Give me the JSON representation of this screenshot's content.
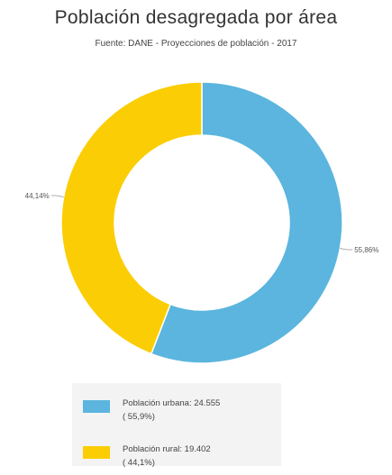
{
  "title": "Población desagregada por área",
  "subtitle": "Fuente: DANE - Proyecciones de población - 2017",
  "chart_data": {
    "type": "pie",
    "donut": true,
    "categories": [
      "Población urbana",
      "Población rural"
    ],
    "values": [
      24555,
      19402
    ],
    "percent_labels": [
      "55,86%",
      "44,14%"
    ],
    "colors": [
      "#5bb5de",
      "#fbcd04"
    ],
    "legend": [
      {
        "label": "Población urbana:",
        "value": "24.555",
        "percent": "( 55,9%)"
      },
      {
        "label": "Población rural:",
        "value": "19.402",
        "percent": "( 44,1%)"
      }
    ],
    "legend_position": "bottom"
  }
}
